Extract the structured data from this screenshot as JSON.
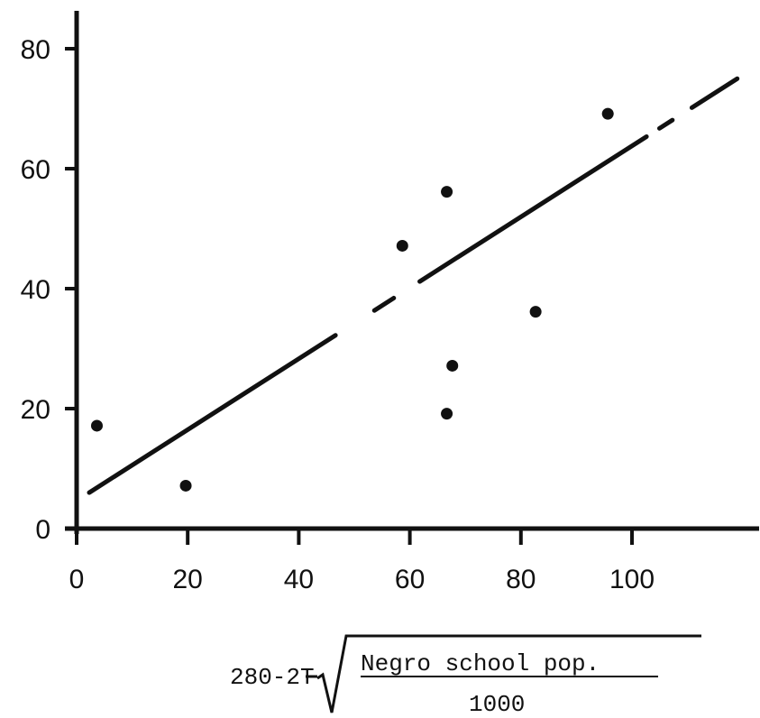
{
  "chart_data": {
    "type": "scatter",
    "title": "",
    "xlabel": {
      "prefix": "280-2T",
      "numerator": "Negro school pop.",
      "denominator": "1000"
    },
    "ylabel": "",
    "xlim": [
      0,
      115
    ],
    "ylim": [
      0,
      85
    ],
    "x_ticks": [
      "0",
      "20",
      "40",
      "60",
      "80",
      "100"
    ],
    "y_ticks": [
      "0",
      "20",
      "40",
      "60",
      "80"
    ],
    "grid": false,
    "points": [
      {
        "x": 3,
        "y": 17
      },
      {
        "x": 19,
        "y": 7
      },
      {
        "x": 58,
        "y": 47
      },
      {
        "x": 66,
        "y": 56
      },
      {
        "x": 66,
        "y": 19
      },
      {
        "x": 67,
        "y": 27
      },
      {
        "x": 82,
        "y": 36
      },
      {
        "x": 95,
        "y": 69
      }
    ],
    "fit_line": {
      "x": [
        0,
        117
      ],
      "y": [
        6,
        75
      ],
      "style": "broken"
    }
  },
  "colors": {
    "ink": "#111111",
    "background": "#ffffff"
  }
}
